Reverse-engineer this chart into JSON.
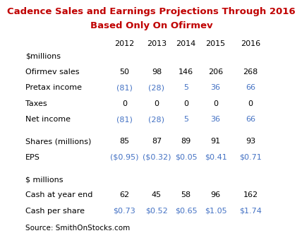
{
  "title_line1": "Cadence Sales and Earnings Projections Through 2016",
  "title_line2": "Based Only On Ofirmev",
  "title_color": "#C00000",
  "title_fontsize": 9.5,
  "years": [
    "2012",
    "2013",
    "2014",
    "2015",
    "2016"
  ],
  "section1_header": "$millions",
  "section1_rows": [
    {
      "label": "Ofirmev sales",
      "values": [
        "50",
        "98",
        "146",
        "206",
        "268"
      ],
      "color": "#000000"
    },
    {
      "label": "Pretax income",
      "values": [
        "(81)",
        "(28)",
        "5",
        "36",
        "66"
      ],
      "color": "#4472C4"
    },
    {
      "label": "Taxes",
      "values": [
        "0",
        "0",
        "0",
        "0",
        "0"
      ],
      "color": "#000000"
    },
    {
      "label": "Net income",
      "values": [
        "(81)",
        "(28)",
        "5",
        "36",
        "66"
      ],
      "color": "#4472C4"
    }
  ],
  "section2_rows": [
    {
      "label": "Shares (millions)",
      "values": [
        "85",
        "87",
        "89",
        "91",
        "93"
      ],
      "color": "#000000"
    },
    {
      "label": "EPS",
      "values": [
        "($0.95)",
        "($0.32)",
        "$0.05",
        "$0.41",
        "$0.71"
      ],
      "color": "#4472C4"
    }
  ],
  "section3_header": "$ millions",
  "section3_rows": [
    {
      "label": "Cash at year end",
      "values": [
        "62",
        "45",
        "58",
        "96",
        "162"
      ],
      "color": "#000000"
    },
    {
      "label": "Cash per share",
      "values": [
        "$0.73",
        "$0.52",
        "$0.65",
        "$1.05",
        "$1.74"
      ],
      "color": "#4472C4"
    }
  ],
  "source_text": "Source: SmithOnStocks.com",
  "bg_color": "#FFFFFF",
  "label_color": "#000000"
}
